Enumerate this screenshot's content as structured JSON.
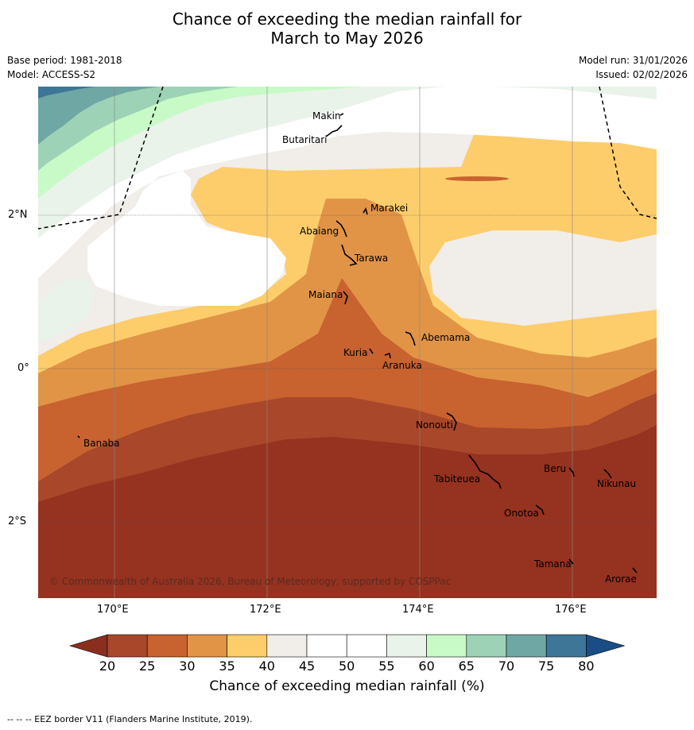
{
  "header": {
    "title_line1": "Chance of exceeding the median rainfall for",
    "title_line2": "March to May 2026",
    "base_period": "Base period: 1981-2018",
    "model": "Model: ACCESS-S2",
    "model_run": "Model run: 31/01/2026",
    "issued": "Issued: 02/02/2026"
  },
  "map": {
    "lat_ticks": [
      "2°N",
      "0°",
      "2°S"
    ],
    "lon_ticks": [
      "170°E",
      "172°E",
      "174°E",
      "176°E"
    ],
    "copyright": "© Commonwealth of Australia 2026, Bureau of Meteorology, supported by COSPPac",
    "islands": [
      "Makin",
      "Butaritari",
      "Marakei",
      "Abaiang",
      "Tarawa",
      "Maiana",
      "Abemama",
      "Kuria",
      "Aranuka",
      "Nonouti",
      "Banaba",
      "Beru",
      "Nikunau",
      "Tabiteuea",
      "Onotoa",
      "Tamana",
      "Arorae"
    ]
  },
  "colorbar": {
    "label": "Chance of exceeding median rainfall (%)",
    "ticks": [
      "20",
      "25",
      "30",
      "35",
      "40",
      "45",
      "50",
      "55",
      "60",
      "65",
      "70",
      "75",
      "80"
    ],
    "colors": {
      "below20": "#8b2e1f",
      "20-25": "#a8472a",
      "25-30": "#c8622f",
      "30-35": "#e19446",
      "35-40": "#fdcd6b",
      "40-45": "#f1ede8",
      "45-50": "#ffffff",
      "50-55": "#ffffff",
      "55-60": "#eaf3ea",
      "60-65": "#c8fac8",
      "65-70": "#9dd2b6",
      "70-75": "#6fa7a5",
      "75-80": "#3d7696",
      "above80": "#1a4d85",
      "lowest_fill": "#963220"
    }
  },
  "footnote": "-- -- -- EEZ border V11 (Flanders Marine Institute, 2019)."
}
